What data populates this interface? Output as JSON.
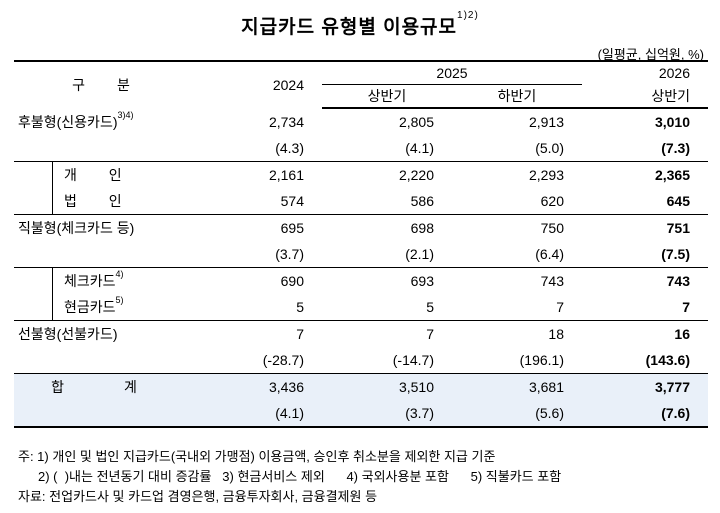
{
  "title": "지급카드 유형별 이용규모",
  "title_sup": "1)2)",
  "unit": "(일평균, 십억원, %)",
  "header": {
    "gubun": "구 분",
    "y2024": "2024",
    "y2025": "2025",
    "y2026": "2026",
    "first_half": "상반기",
    "second_half": "하반기",
    "first_half_2026": "상반기"
  },
  "rows": {
    "postpaid": {
      "label": "후불형(신용카드)",
      "sup": "3)4)",
      "v": [
        "2,734",
        "2,805",
        "2,913",
        "3,010"
      ],
      "g": [
        "(4.3)",
        "(4.1)",
        "(5.0)",
        "(7.3)"
      ]
    },
    "individual": {
      "label": "개 인",
      "v": [
        "2,161",
        "2,220",
        "2,293",
        "2,365"
      ]
    },
    "corporate": {
      "label": "법 인",
      "v": [
        "574",
        "586",
        "620",
        "645"
      ]
    },
    "debit": {
      "label": "직불형(체크카드 등)",
      "v": [
        "695",
        "698",
        "750",
        "751"
      ],
      "g": [
        "(3.7)",
        "(2.1)",
        "(6.4)",
        "(7.5)"
      ]
    },
    "check": {
      "label": "체크카드",
      "sup": "4)",
      "v": [
        "690",
        "693",
        "743",
        "743"
      ]
    },
    "cash": {
      "label": "현금카드",
      "sup": "5)",
      "v": [
        "5",
        "5",
        "7",
        "7"
      ]
    },
    "prepaid": {
      "label": "선불형(선불카드)",
      "v": [
        "7",
        "7",
        "18",
        "16"
      ],
      "g": [
        "(-28.7)",
        "(-14.7)",
        "(196.1)",
        "(143.6)"
      ]
    },
    "total": {
      "label": "합 계",
      "v": [
        "3,436",
        "3,510",
        "3,681",
        "3,777"
      ],
      "g": [
        "(4.1)",
        "(3.7)",
        "(5.6)",
        "(7.6)"
      ]
    }
  },
  "notes": {
    "n1": "주: 1) 개인 및 법인 지급카드(국내외 가맹점) 이용금액, 승인후 취소분을 제외한 지급 기준",
    "n2": "2) (  )내는 전년동기 대비 증감률   3) 현금서비스 제외      4) 국외사용분 포함      5) 직불카드 포함",
    "n3": "자료: 전업카드사 및 카드업 겸영은행, 금융투자회사, 금융결제원 등"
  }
}
